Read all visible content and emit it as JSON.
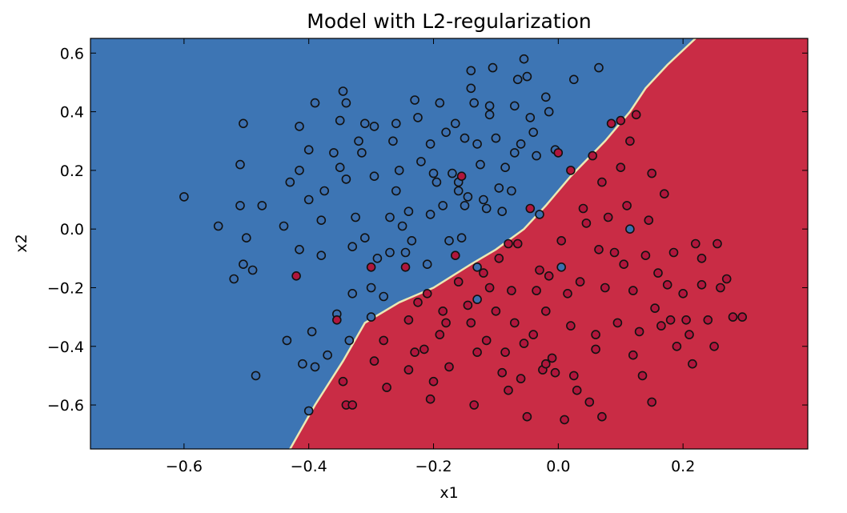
{
  "chart_data": {
    "type": "scatter",
    "title": "Model with L2-regularization",
    "xlabel": "x1",
    "ylabel": "x2",
    "xlim": [
      -0.75,
      0.4
    ],
    "ylim": [
      -0.75,
      0.65
    ],
    "xticks": [
      -0.6,
      -0.4,
      -0.2,
      0.0,
      0.2
    ],
    "xtick_labels": [
      "−0.6",
      "−0.4",
      "−0.2",
      "0.0",
      "0.2"
    ],
    "yticks": [
      0.6,
      0.4,
      0.2,
      0.0,
      -0.2,
      -0.4,
      -0.6
    ],
    "ytick_labels": [
      "0.6",
      "0.4",
      "0.2",
      "0.0",
      "−0.2",
      "−0.4",
      "−0.6"
    ],
    "grid": false,
    "colors": {
      "region_blue": "#3d75b4",
      "region_red": "#c92c45",
      "point_blue": "#3c6fae",
      "point_red": "#b0163c",
      "boundary": "#ece8b4"
    },
    "decision_boundary": [
      [
        -0.43,
        -0.75
      ],
      [
        -0.39,
        -0.6
      ],
      [
        -0.345,
        -0.45
      ],
      [
        -0.31,
        -0.32
      ],
      [
        -0.255,
        -0.25
      ],
      [
        -0.2,
        -0.2
      ],
      [
        -0.14,
        -0.12
      ],
      [
        -0.1,
        -0.07
      ],
      [
        -0.055,
        0.0
      ],
      [
        -0.02,
        0.08
      ],
      [
        0.02,
        0.18
      ],
      [
        0.075,
        0.3
      ],
      [
        0.115,
        0.4
      ],
      [
        0.14,
        0.48
      ],
      [
        0.175,
        0.56
      ],
      [
        0.22,
        0.65
      ]
    ],
    "series": [
      {
        "label": "blue",
        "points": [
          [
            -0.6,
            0.11
          ],
          [
            -0.545,
            0.01
          ],
          [
            -0.52,
            -0.17
          ],
          [
            -0.51,
            0.08
          ],
          [
            -0.51,
            0.22
          ],
          [
            -0.505,
            0.36
          ],
          [
            -0.505,
            -0.12
          ],
          [
            -0.5,
            -0.03
          ],
          [
            -0.49,
            -0.14
          ],
          [
            -0.485,
            -0.5
          ],
          [
            -0.475,
            0.08
          ],
          [
            -0.44,
            0.01
          ],
          [
            -0.435,
            -0.38
          ],
          [
            -0.43,
            0.16
          ],
          [
            -0.415,
            0.2
          ],
          [
            -0.415,
            0.35
          ],
          [
            -0.415,
            -0.07
          ],
          [
            -0.41,
            -0.46
          ],
          [
            -0.4,
            0.1
          ],
          [
            -0.4,
            0.27
          ],
          [
            -0.4,
            -0.62
          ],
          [
            -0.395,
            -0.35
          ],
          [
            -0.39,
            -0.47
          ],
          [
            -0.38,
            -0.09
          ],
          [
            -0.38,
            0.03
          ],
          [
            -0.375,
            0.13
          ],
          [
            -0.37,
            -0.43
          ],
          [
            -0.36,
            0.26
          ],
          [
            -0.355,
            -0.29
          ],
          [
            -0.35,
            0.37
          ],
          [
            -0.345,
            0.47
          ],
          [
            -0.34,
            0.43
          ],
          [
            -0.34,
            0.17
          ],
          [
            -0.335,
            -0.38
          ],
          [
            -0.33,
            -0.22
          ],
          [
            -0.33,
            -0.06
          ],
          [
            -0.325,
            0.04
          ],
          [
            -0.32,
            0.3
          ],
          [
            -0.315,
            0.26
          ],
          [
            -0.31,
            -0.03
          ],
          [
            -0.3,
            -0.2
          ],
          [
            -0.3,
            -0.3
          ],
          [
            -0.295,
            0.35
          ],
          [
            -0.295,
            0.18
          ],
          [
            -0.29,
            -0.1
          ],
          [
            -0.28,
            -0.23
          ],
          [
            -0.27,
            0.04
          ],
          [
            -0.27,
            -0.08
          ],
          [
            -0.265,
            0.3
          ],
          [
            -0.26,
            0.13
          ],
          [
            -0.255,
            0.2
          ],
          [
            -0.25,
            0.01
          ],
          [
            -0.245,
            -0.08
          ],
          [
            -0.24,
            0.06
          ],
          [
            -0.235,
            -0.04
          ],
          [
            -0.23,
            0.44
          ],
          [
            -0.225,
            0.38
          ],
          [
            -0.22,
            0.23
          ],
          [
            -0.21,
            -0.12
          ],
          [
            -0.205,
            0.29
          ],
          [
            -0.2,
            0.19
          ],
          [
            -0.195,
            0.16
          ],
          [
            -0.185,
            0.08
          ],
          [
            -0.18,
            0.33
          ],
          [
            -0.175,
            -0.04
          ],
          [
            -0.17,
            0.19
          ],
          [
            -0.165,
            0.36
          ],
          [
            -0.16,
            0.16
          ],
          [
            -0.155,
            -0.03
          ],
          [
            -0.15,
            0.08
          ],
          [
            -0.145,
            0.11
          ],
          [
            -0.14,
            0.54
          ],
          [
            -0.14,
            0.48
          ],
          [
            -0.135,
            0.43
          ],
          [
            -0.13,
            0.29
          ],
          [
            -0.125,
            0.22
          ],
          [
            -0.12,
            0.1
          ],
          [
            -0.115,
            0.07
          ],
          [
            -0.11,
            0.39
          ],
          [
            -0.11,
            0.42
          ],
          [
            -0.105,
            0.55
          ],
          [
            -0.1,
            0.31
          ],
          [
            -0.095,
            0.14
          ],
          [
            -0.09,
            0.06
          ],
          [
            -0.085,
            0.21
          ],
          [
            -0.075,
            0.13
          ],
          [
            -0.07,
            0.42
          ],
          [
            -0.07,
            0.26
          ],
          [
            -0.065,
            0.51
          ],
          [
            -0.06,
            0.29
          ],
          [
            -0.055,
            0.58
          ],
          [
            -0.05,
            0.52
          ],
          [
            -0.045,
            0.38
          ],
          [
            -0.04,
            0.33
          ],
          [
            -0.035,
            0.25
          ],
          [
            -0.03,
            0.05
          ],
          [
            -0.02,
            0.45
          ],
          [
            -0.015,
            0.4
          ],
          [
            -0.005,
            0.27
          ],
          [
            0.005,
            -0.13
          ],
          [
            0.025,
            0.51
          ],
          [
            0.065,
            0.55
          ],
          [
            0.115,
            0.0
          ],
          [
            -0.13,
            -0.24
          ],
          [
            -0.13,
            -0.13
          ],
          [
            -0.16,
            0.13
          ],
          [
            -0.15,
            0.31
          ],
          [
            -0.19,
            0.43
          ],
          [
            -0.31,
            0.36
          ],
          [
            -0.39,
            0.43
          ],
          [
            -0.26,
            0.36
          ],
          [
            -0.205,
            0.05
          ],
          [
            -0.35,
            0.21
          ]
        ]
      },
      {
        "label": "red",
        "points": [
          [
            -0.42,
            -0.16
          ],
          [
            -0.355,
            -0.31
          ],
          [
            -0.345,
            -0.52
          ],
          [
            -0.34,
            -0.6
          ],
          [
            -0.3,
            -0.13
          ],
          [
            -0.295,
            -0.45
          ],
          [
            -0.28,
            -0.38
          ],
          [
            -0.275,
            -0.54
          ],
          [
            -0.245,
            -0.13
          ],
          [
            -0.24,
            -0.31
          ],
          [
            -0.23,
            -0.42
          ],
          [
            -0.225,
            -0.25
          ],
          [
            -0.215,
            -0.41
          ],
          [
            -0.21,
            -0.22
          ],
          [
            -0.205,
            -0.58
          ],
          [
            -0.2,
            -0.52
          ],
          [
            -0.19,
            -0.36
          ],
          [
            -0.185,
            -0.28
          ],
          [
            -0.18,
            -0.32
          ],
          [
            -0.175,
            -0.47
          ],
          [
            -0.165,
            -0.09
          ],
          [
            -0.16,
            -0.18
          ],
          [
            -0.155,
            0.18
          ],
          [
            -0.145,
            -0.26
          ],
          [
            -0.14,
            -0.32
          ],
          [
            -0.135,
            -0.6
          ],
          [
            -0.12,
            -0.15
          ],
          [
            -0.115,
            -0.38
          ],
          [
            -0.11,
            -0.2
          ],
          [
            -0.1,
            -0.28
          ],
          [
            -0.095,
            -0.1
          ],
          [
            -0.09,
            -0.49
          ],
          [
            -0.085,
            -0.42
          ],
          [
            -0.08,
            -0.55
          ],
          [
            -0.075,
            -0.21
          ],
          [
            -0.07,
            -0.32
          ],
          [
            -0.065,
            -0.05
          ],
          [
            -0.06,
            -0.51
          ],
          [
            -0.055,
            -0.39
          ],
          [
            -0.05,
            -0.64
          ],
          [
            -0.045,
            0.07
          ],
          [
            -0.04,
            -0.36
          ],
          [
            -0.035,
            -0.21
          ],
          [
            -0.03,
            -0.14
          ],
          [
            -0.025,
            -0.48
          ],
          [
            -0.02,
            -0.28
          ],
          [
            -0.015,
            -0.16
          ],
          [
            -0.01,
            -0.44
          ],
          [
            -0.005,
            -0.49
          ],
          [
            0.0,
            0.26
          ],
          [
            0.005,
            -0.04
          ],
          [
            0.01,
            -0.65
          ],
          [
            0.015,
            -0.22
          ],
          [
            0.02,
            -0.33
          ],
          [
            0.025,
            -0.5
          ],
          [
            0.03,
            -0.55
          ],
          [
            0.035,
            -0.18
          ],
          [
            0.04,
            0.07
          ],
          [
            0.045,
            0.02
          ],
          [
            0.05,
            -0.59
          ],
          [
            0.055,
            0.25
          ],
          [
            0.06,
            -0.41
          ],
          [
            0.065,
            -0.07
          ],
          [
            0.07,
            -0.64
          ],
          [
            0.075,
            -0.2
          ],
          [
            0.08,
            0.04
          ],
          [
            0.085,
            0.36
          ],
          [
            0.09,
            -0.08
          ],
          [
            0.095,
            -0.32
          ],
          [
            0.1,
            0.21
          ],
          [
            0.105,
            -0.12
          ],
          [
            0.11,
            0.08
          ],
          [
            0.115,
            0.3
          ],
          [
            0.12,
            -0.43
          ],
          [
            0.125,
            0.39
          ],
          [
            0.13,
            -0.35
          ],
          [
            0.135,
            -0.5
          ],
          [
            0.14,
            -0.09
          ],
          [
            0.145,
            0.03
          ],
          [
            0.15,
            0.19
          ],
          [
            0.155,
            -0.27
          ],
          [
            0.16,
            -0.15
          ],
          [
            0.165,
            -0.33
          ],
          [
            0.17,
            0.12
          ],
          [
            0.175,
            -0.19
          ],
          [
            0.18,
            -0.31
          ],
          [
            0.185,
            -0.08
          ],
          [
            0.19,
            -0.4
          ],
          [
            0.2,
            -0.22
          ],
          [
            0.205,
            -0.31
          ],
          [
            0.21,
            -0.36
          ],
          [
            0.215,
            -0.46
          ],
          [
            0.22,
            -0.05
          ],
          [
            0.23,
            -0.19
          ],
          [
            0.24,
            -0.31
          ],
          [
            0.25,
            -0.4
          ],
          [
            0.255,
            -0.05
          ],
          [
            0.26,
            -0.2
          ],
          [
            0.27,
            -0.17
          ],
          [
            0.28,
            -0.3
          ],
          [
            0.295,
            -0.3
          ],
          [
            0.1,
            0.37
          ],
          [
            0.07,
            0.16
          ],
          [
            0.02,
            0.2
          ],
          [
            -0.13,
            -0.42
          ],
          [
            -0.24,
            -0.48
          ],
          [
            0.15,
            -0.59
          ],
          [
            -0.33,
            -0.6
          ],
          [
            0.23,
            -0.1
          ],
          [
            -0.08,
            -0.05
          ],
          [
            0.12,
            -0.21
          ],
          [
            0.06,
            -0.36
          ],
          [
            -0.02,
            -0.46
          ]
        ]
      }
    ]
  }
}
